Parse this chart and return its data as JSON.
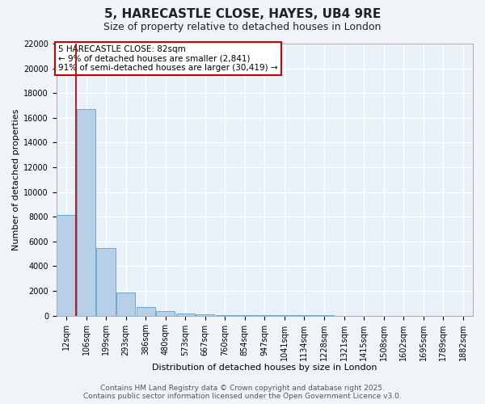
{
  "title": "5, HARECASTLE CLOSE, HAYES, UB4 9RE",
  "subtitle": "Size of property relative to detached houses in London",
  "xlabel": "Distribution of detached houses by size in London",
  "ylabel": "Number of detached properties",
  "bar_color": "#b8cfe8",
  "bar_edge_color": "#6aaad4",
  "background_color": "#e8f0f8",
  "grid_color": "#ffffff",
  "categories": [
    "12sqm",
    "106sqm",
    "199sqm",
    "293sqm",
    "386sqm",
    "480sqm",
    "573sqm",
    "667sqm",
    "760sqm",
    "854sqm",
    "947sqm",
    "1041sqm",
    "1134sqm",
    "1228sqm",
    "1321sqm",
    "1415sqm",
    "1508sqm",
    "1602sqm",
    "1695sqm",
    "1789sqm",
    "1882sqm"
  ],
  "values": [
    8150,
    16700,
    5450,
    1900,
    680,
    380,
    200,
    110,
    65,
    40,
    22,
    15,
    10,
    8,
    5,
    4,
    3,
    2,
    1,
    1,
    0
  ],
  "red_line_index": 1,
  "annotation_text_line1": "5 HARECASTLE CLOSE: 82sqm",
  "annotation_text_line2": "← 9% of detached houses are smaller (2,841)",
  "annotation_text_line3": "91% of semi-detached houses are larger (30,419) →",
  "ylim": [
    0,
    22000
  ],
  "yticks": [
    0,
    2000,
    4000,
    6000,
    8000,
    10000,
    12000,
    14000,
    16000,
    18000,
    20000,
    22000
  ],
  "footer_line1": "Contains HM Land Registry data © Crown copyright and database right 2025.",
  "footer_line2": "Contains public sector information licensed under the Open Government Licence v3.0.",
  "title_fontsize": 11,
  "subtitle_fontsize": 9,
  "axis_label_fontsize": 8,
  "tick_fontsize": 7,
  "annotation_fontsize": 7.5,
  "footer_fontsize": 6.5,
  "fig_width": 6.0,
  "fig_height": 5.0,
  "fig_dpi": 100
}
